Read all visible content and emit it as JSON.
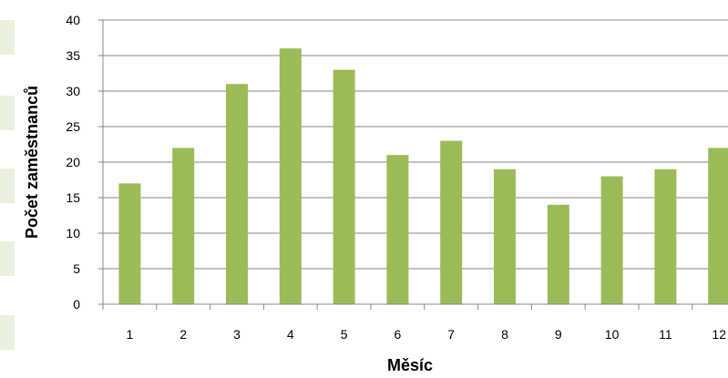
{
  "chart_data": {
    "type": "bar",
    "categories": [
      "1",
      "2",
      "3",
      "4",
      "5",
      "6",
      "7",
      "8",
      "9",
      "10",
      "11",
      "12"
    ],
    "values": [
      17,
      22,
      31,
      36,
      33,
      21,
      23,
      19,
      14,
      18,
      19,
      22
    ],
    "xlabel": "Měsíc",
    "ylabel": "Počet zaměstnanců",
    "ylim": [
      0,
      40
    ],
    "yticks": [
      "0",
      "5",
      "10",
      "15",
      "20",
      "25",
      "30",
      "35",
      "40"
    ],
    "grid": true,
    "legend": "none"
  },
  "colors": {
    "bar": "#9bbb59",
    "grid": "#878787",
    "axis": "#878787",
    "text": "#000000",
    "left_cells": "#e9f0dc"
  }
}
